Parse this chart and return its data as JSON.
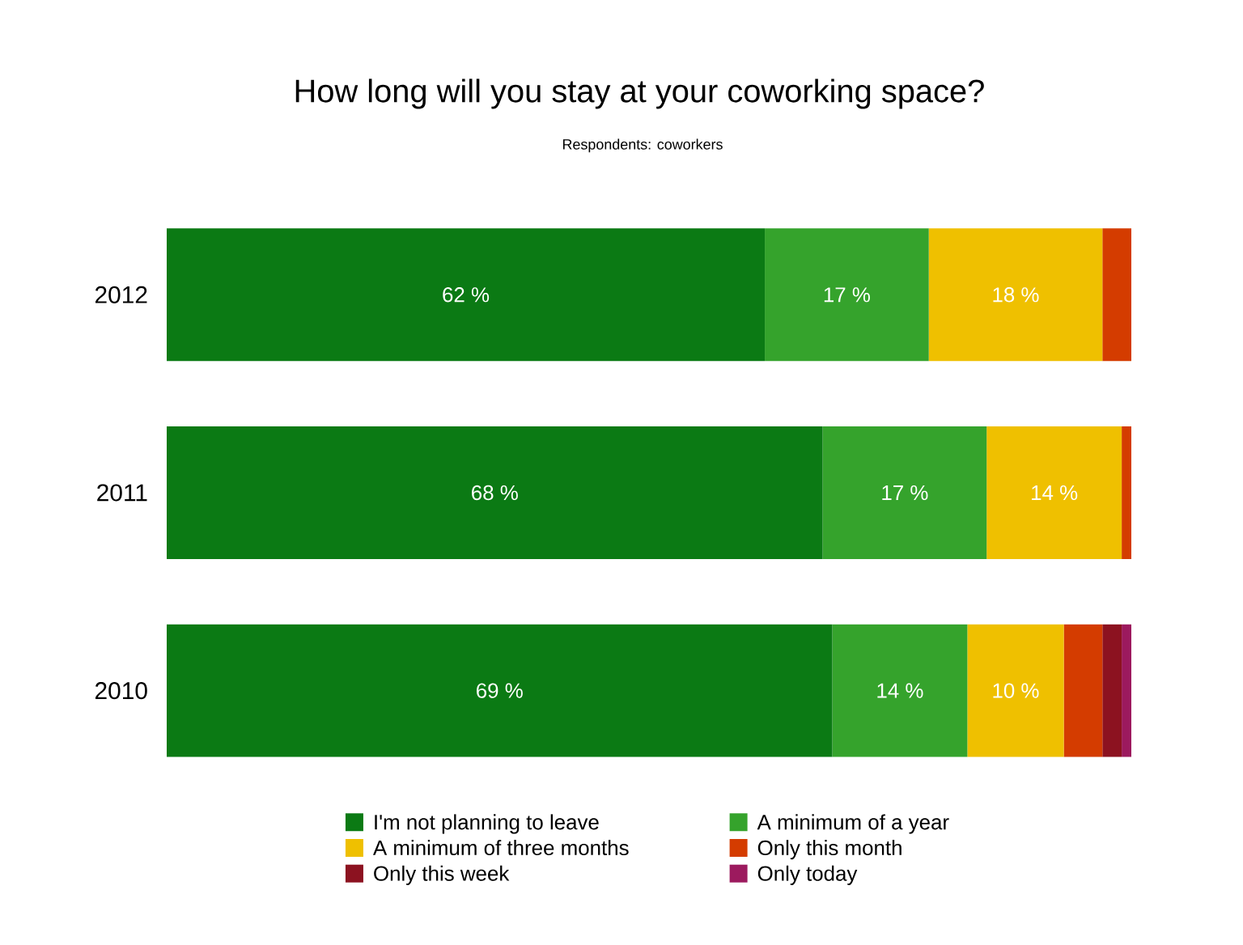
{
  "chart_data": {
    "type": "bar",
    "orientation": "horizontal",
    "stacked": true,
    "title": "How long will you stay at your coworking space?",
    "subtitle": "Respondents: coworkers",
    "categories": [
      "2012",
      "2011",
      "2010"
    ],
    "tick_labels": "y",
    "legend": "bottom",
    "series": [
      {
        "name": "I'm not planning to leave",
        "color": "#0b7a14",
        "values": [
          62,
          68,
          69
        ],
        "value_labels": [
          "62 %",
          "68 %",
          "69 %"
        ]
      },
      {
        "name": "A minimum of a year",
        "color": "#35a32c",
        "values": [
          17,
          17,
          14
        ],
        "value_labels": [
          "17 %",
          "17 %",
          "14 %"
        ]
      },
      {
        "name": "A minimum of three months",
        "color": "#efc000",
        "values": [
          18,
          14,
          10
        ],
        "value_labels": [
          "18 %",
          "14 %",
          "10 %"
        ]
      },
      {
        "name": "Only this month",
        "color": "#d43c00",
        "values": [
          3,
          1,
          4
        ]
      },
      {
        "name": "Only this week",
        "color": "#8c1220",
        "values": [
          0,
          0,
          2
        ]
      },
      {
        "name": "Only today",
        "color": "#9c1a5e",
        "values": [
          0,
          0,
          1
        ]
      }
    ]
  }
}
